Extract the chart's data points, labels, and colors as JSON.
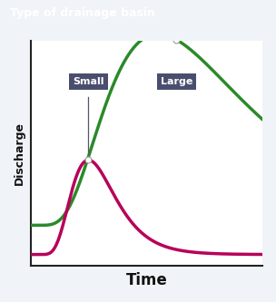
{
  "title": "Type of drainage basin",
  "title_bg": "#4a4e6e",
  "title_color": "#ffffff",
  "xlabel": "Time",
  "ylabel": "Discharge",
  "bg_color": "#f0f4f8",
  "plot_bg": "#ffffff",
  "grid_color": "#b8c8d8",
  "small_label": "Small",
  "large_label": "Large",
  "label_bg": "#4a4e6e",
  "label_color": "#ffffff",
  "small_color": "#b8005a",
  "large_color": "#2a8a2a",
  "xlim": [
    0,
    10
  ],
  "ylim": [
    0,
    10
  ]
}
